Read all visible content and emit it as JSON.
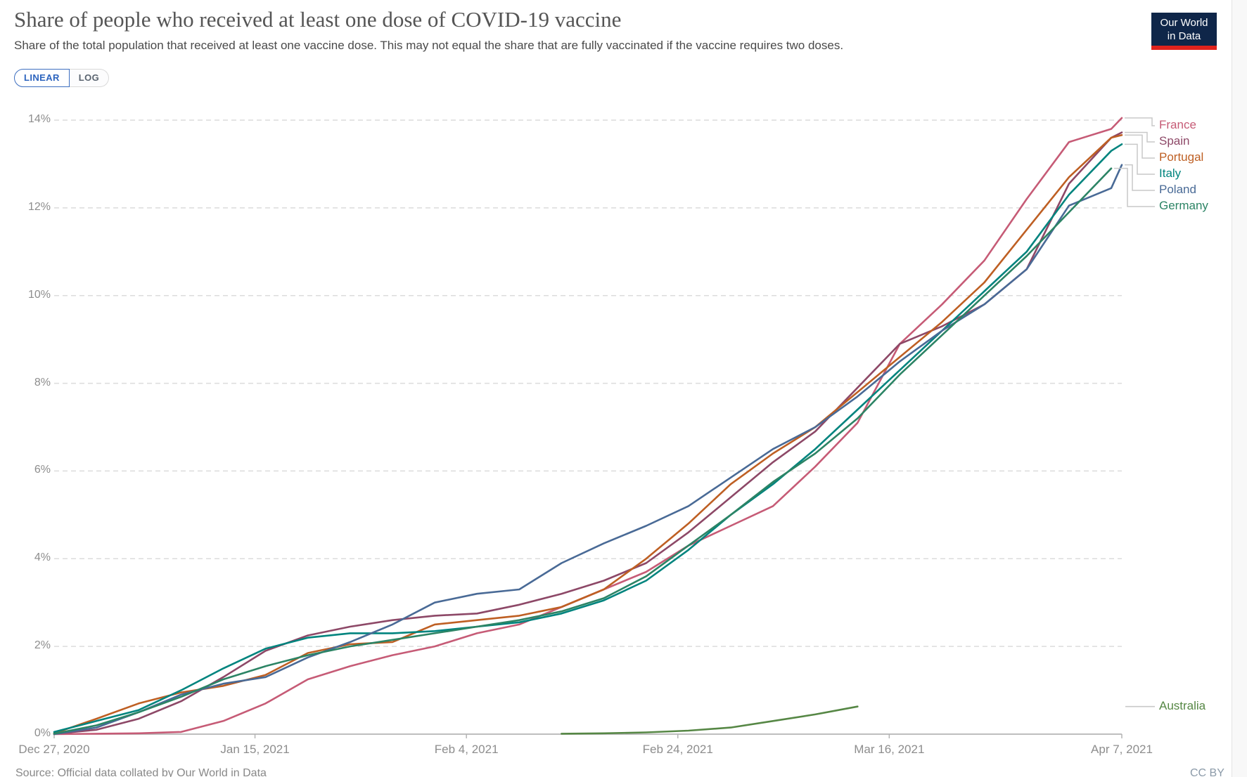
{
  "header": {
    "title": "Share of people who received at least one dose of COVID-19 vaccine",
    "subtitle": "Share of the total population that received at least one vaccine dose. This may not equal the share that are fully vaccinated if the vaccine requires two doses.",
    "logo_line1": "Our World",
    "logo_line2": "in Data"
  },
  "toolbar": {
    "linear_label": "LINEAR",
    "log_label": "LOG",
    "active_scale": "LINEAR"
  },
  "footer": {
    "source": "Source: Official data collated by Our World in Data",
    "license": "CC BY"
  },
  "colors": {
    "accent_blue": "#2d64be",
    "logo_navy": "#0f2649",
    "logo_red": "#e0221c",
    "gridline": "#dcdcdc",
    "axis": "#b4b4b4",
    "connector": "#c9c9c9",
    "tick_text": "#8d8d8d"
  },
  "chart_data": {
    "type": "line",
    "title": "Share of people who received at least one dose of COVID-19 vaccine",
    "xlabel": "",
    "ylabel": "",
    "x_unit": "days since Dec 27, 2020",
    "grid": "dashed horizontal",
    "legend_position": "right",
    "x": [
      0,
      4,
      8,
      12,
      16,
      20,
      24,
      28,
      32,
      36,
      40,
      44,
      48,
      52,
      56,
      60,
      64,
      68,
      72,
      76,
      80,
      84,
      88,
      92,
      96,
      100,
      101
    ],
    "x_dates": [
      "Dec 27, 2020",
      "Dec 31, 2020",
      "Jan 4, 2021",
      "Jan 8, 2021",
      "Jan 12, 2021",
      "Jan 16, 2021",
      "Jan 20, 2021",
      "Jan 24, 2021",
      "Jan 28, 2021",
      "Feb 1, 2021",
      "Feb 5, 2021",
      "Feb 9, 2021",
      "Feb 13, 2021",
      "Feb 17, 2021",
      "Feb 21, 2021",
      "Feb 25, 2021",
      "Mar 1, 2021",
      "Mar 5, 2021",
      "Mar 9, 2021",
      "Mar 13, 2021",
      "Mar 17, 2021",
      "Mar 21, 2021",
      "Mar 25, 2021",
      "Mar 29, 2021",
      "Apr 2, 2021",
      "Apr 6, 2021",
      "Apr 7, 2021"
    ],
    "x_axis": {
      "tick_days": [
        0,
        19,
        39,
        59,
        79,
        101
      ],
      "tick_labels": [
        "Dec 27, 2020",
        "Jan 15, 2021",
        "Feb 4, 2021",
        "Feb 24, 2021",
        "Mar 16, 2021",
        "Apr 7, 2021"
      ],
      "max_day": 101
    },
    "y_axis": {
      "ticks": [
        0,
        2,
        4,
        6,
        8,
        10,
        12,
        14
      ],
      "tick_labels": [
        "0%",
        "2%",
        "4%",
        "6%",
        "8%",
        "10%",
        "12%",
        "14%"
      ],
      "range": [
        0,
        14
      ],
      "format": "percent"
    },
    "series": [
      {
        "name": "France",
        "color": "#c65b76",
        "legend_style": "elbow",
        "values": [
          0,
          0.01,
          0.02,
          0.05,
          0.3,
          0.7,
          1.25,
          1.55,
          1.8,
          2.0,
          2.3,
          2.5,
          2.9,
          3.3,
          3.7,
          4.3,
          4.75,
          5.2,
          6.1,
          7.1,
          8.9,
          9.8,
          10.8,
          12.2,
          13.5,
          13.8,
          14.05
        ]
      },
      {
        "name": "Spain",
        "color": "#8d4867",
        "legend_style": "elbow",
        "values": [
          0.01,
          0.1,
          0.35,
          0.75,
          1.3,
          1.9,
          2.25,
          2.45,
          2.6,
          2.7,
          2.75,
          2.95,
          3.2,
          3.5,
          3.9,
          4.6,
          5.4,
          6.2,
          6.9,
          7.9,
          8.9,
          9.3,
          9.8,
          10.6,
          12.55,
          13.6,
          13.72
        ]
      },
      {
        "name": "Portugal",
        "color": "#be5f23",
        "legend_style": "elbow",
        "values": [
          0.02,
          0.35,
          0.7,
          0.95,
          1.1,
          1.35,
          1.85,
          2.05,
          2.1,
          2.5,
          2.6,
          2.7,
          2.9,
          3.3,
          4.0,
          4.8,
          5.7,
          6.4,
          7.0,
          7.8,
          8.6,
          9.4,
          10.3,
          11.5,
          12.7,
          13.6,
          13.66
        ]
      },
      {
        "name": "Italy",
        "color": "#00847e",
        "legend_style": "elbow",
        "values": [
          0.05,
          0.3,
          0.55,
          1.0,
          1.5,
          1.95,
          2.2,
          2.3,
          2.3,
          2.35,
          2.45,
          2.55,
          2.75,
          3.05,
          3.5,
          4.2,
          5.0,
          5.7,
          6.5,
          7.4,
          8.3,
          9.2,
          10.1,
          11.0,
          12.3,
          13.3,
          13.45
        ]
      },
      {
        "name": "Poland",
        "color": "#496a96",
        "legend_style": "elbow",
        "values": [
          0,
          0.15,
          0.5,
          0.9,
          1.15,
          1.3,
          1.75,
          2.1,
          2.5,
          3.0,
          3.2,
          3.3,
          3.9,
          4.35,
          4.75,
          5.2,
          5.85,
          6.5,
          7.0,
          7.7,
          8.5,
          9.2,
          9.8,
          10.6,
          12.05,
          12.45,
          12.98
        ]
      },
      {
        "name": "Germany",
        "color": "#2c8465",
        "legend_style": "elbow",
        "values": [
          0.01,
          0.2,
          0.5,
          0.85,
          1.25,
          1.55,
          1.8,
          2.0,
          2.15,
          2.3,
          2.45,
          2.6,
          2.8,
          3.1,
          3.6,
          4.3,
          5.0,
          5.75,
          6.4,
          7.2,
          8.2,
          9.1,
          10.0,
          10.9,
          11.9,
          12.9,
          null
        ]
      },
      {
        "name": "Australia",
        "color": "#568745",
        "legend_style": "dash",
        "values": [
          null,
          null,
          null,
          null,
          null,
          null,
          null,
          null,
          null,
          null,
          null,
          null,
          0.01,
          0.02,
          0.04,
          0.08,
          0.15,
          0.3,
          0.45,
          0.63,
          null,
          null,
          null,
          null,
          null,
          null,
          null
        ]
      }
    ]
  }
}
